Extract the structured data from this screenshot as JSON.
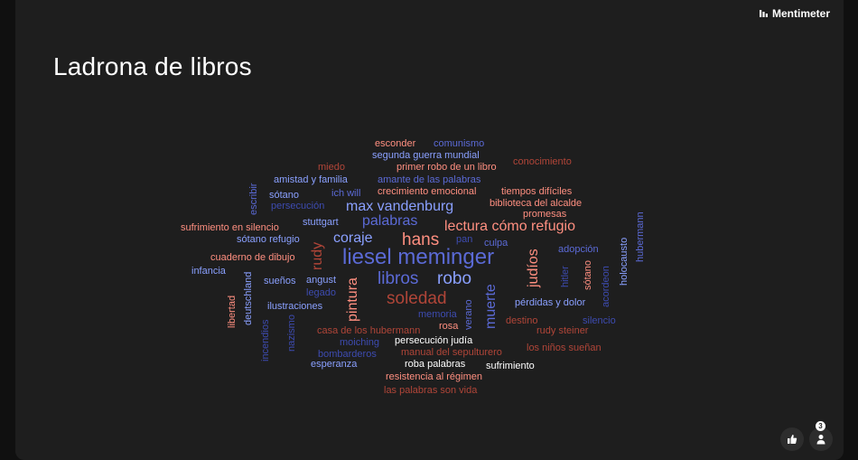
{
  "brand": {
    "name": "Mentimeter"
  },
  "title": "Ladrona de libros",
  "words": [
    "esconder",
    "comunismo",
    "segunda guerra mundial",
    "miedo",
    "primer robo de un libro",
    "conocimiento",
    "amistad y familia",
    "amante de las palabras",
    "escribir",
    "ich will",
    "crecimiento emocional",
    "tiempos difíciles",
    "sótano",
    "persecución",
    "biblioteca del alcalde",
    "max vandenburg",
    "promesas",
    "palabras",
    "stuttgart",
    "sufrimiento en silencio",
    "lectura cómo refugio",
    "hubermann",
    "hans",
    "coraje",
    "sótano refugio",
    "pan",
    "culpa",
    "rudy",
    "adopción",
    "holocausto",
    "liesel meminger",
    "judíos",
    "cuaderno de dibujo",
    "infancia",
    "libros",
    "robo",
    "hitler",
    "sótano",
    "acordeon",
    "deutschland",
    "angust",
    "sueños",
    "legado",
    "soledad",
    "muerte",
    "pintura",
    "libertad",
    "ilustraciones",
    "pérdidas y dolor",
    "memoria",
    "destino",
    "silencio",
    "verano",
    "rosa",
    "incendios",
    "nazismo",
    "casa de los hubermann",
    "rudy steiner",
    "moiching",
    "persecución judía",
    "los niños sueñan",
    "bombarderos",
    "manual del sepulturero",
    "esperanza",
    "roba palabras",
    "sufrimiento",
    "resistencia al régimen",
    "las palabras son vida"
  ],
  "footer": {
    "participants": "3"
  },
  "icons": {
    "like": "thumbs-up-icon",
    "participants": "person-icon",
    "logo": "mentimeter-logo-icon"
  },
  "colors": {
    "blue": "#5b6ad6",
    "red": "#e06155",
    "background": "#1e1e1e"
  }
}
